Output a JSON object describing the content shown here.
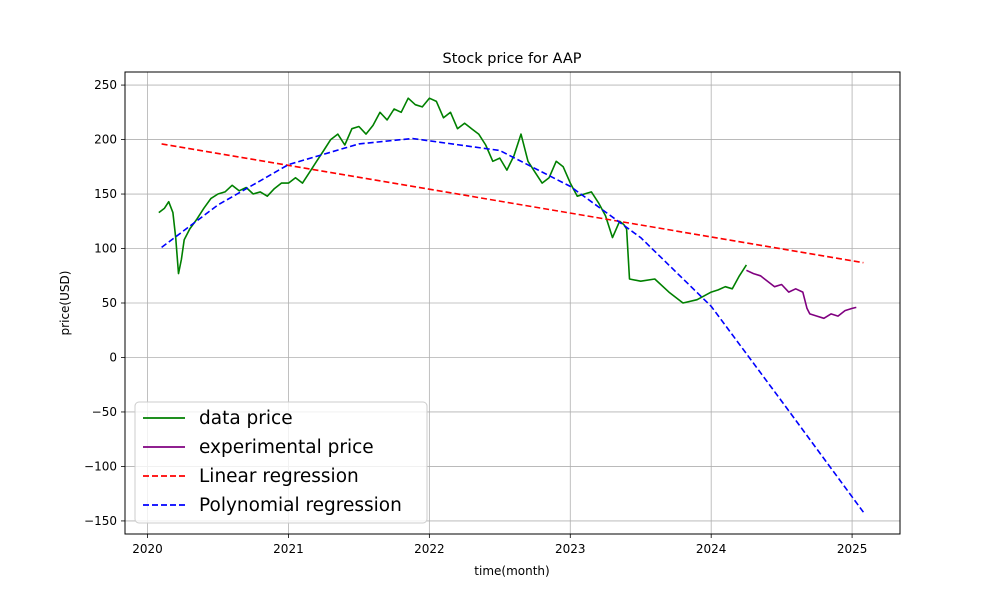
{
  "chart_data": {
    "type": "line",
    "title": "Stock price for AAP",
    "xlabel": "time(month)",
    "ylabel": "price(USD)",
    "xlim": [
      2019.84,
      2025.34
    ],
    "ylim": [
      -162,
      262
    ],
    "x_ticks": [
      2020,
      2021,
      2022,
      2023,
      2024,
      2025
    ],
    "x_tick_labels": [
      "2020",
      "2021",
      "2022",
      "2023",
      "2024",
      "2025"
    ],
    "y_ticks": [
      -150,
      -100,
      -50,
      0,
      50,
      100,
      150,
      200,
      250
    ],
    "y_tick_labels": [
      "−150",
      "−100",
      "−50",
      "0",
      "50",
      "100",
      "150",
      "200",
      "250"
    ],
    "grid": true,
    "legend_position": "lower-left",
    "series": [
      {
        "name": "data price",
        "color": "#008000",
        "style": "solid",
        "x": [
          2020.08,
          2020.12,
          2020.15,
          2020.18,
          2020.2,
          2020.22,
          2020.24,
          2020.26,
          2020.3,
          2020.35,
          2020.4,
          2020.45,
          2020.5,
          2020.55,
          2020.6,
          2020.65,
          2020.7,
          2020.75,
          2020.8,
          2020.85,
          2020.9,
          2020.95,
          2021.0,
          2021.05,
          2021.1,
          2021.15,
          2021.2,
          2021.25,
          2021.3,
          2021.35,
          2021.4,
          2021.45,
          2021.5,
          2021.55,
          2021.6,
          2021.65,
          2021.7,
          2021.75,
          2021.8,
          2021.85,
          2021.9,
          2021.95,
          2022.0,
          2022.05,
          2022.1,
          2022.15,
          2022.2,
          2022.25,
          2022.3,
          2022.35,
          2022.4,
          2022.45,
          2022.5,
          2022.55,
          2022.6,
          2022.65,
          2022.7,
          2022.75,
          2022.8,
          2022.85,
          2022.9,
          2022.95,
          2023.0,
          2023.05,
          2023.1,
          2023.15,
          2023.2,
          2023.25,
          2023.3,
          2023.35,
          2023.38,
          2023.4,
          2023.42,
          2023.5,
          2023.6,
          2023.7,
          2023.8,
          2023.9,
          2024.0,
          2024.05,
          2024.1,
          2024.15,
          2024.2,
          2024.25
        ],
        "values": [
          133,
          137,
          143,
          133,
          110,
          77,
          90,
          108,
          118,
          127,
          137,
          146,
          150,
          152,
          158,
          153,
          156,
          150,
          152,
          148,
          155,
          160,
          160,
          165,
          160,
          170,
          180,
          190,
          200,
          205,
          195,
          210,
          212,
          205,
          213,
          225,
          218,
          228,
          225,
          238,
          232,
          230,
          238,
          235,
          220,
          225,
          210,
          215,
          210,
          205,
          195,
          180,
          183,
          172,
          185,
          205,
          180,
          170,
          160,
          165,
          180,
          175,
          160,
          148,
          150,
          152,
          142,
          130,
          110,
          125,
          122,
          118,
          72,
          70,
          72,
          60,
          50,
          53,
          60,
          62,
          65,
          63,
          75,
          85
        ]
      },
      {
        "name": "experimental price",
        "color": "#800080",
        "style": "solid",
        "x": [
          2024.25,
          2024.3,
          2024.35,
          2024.4,
          2024.45,
          2024.5,
          2024.55,
          2024.6,
          2024.65,
          2024.68,
          2024.7,
          2024.75,
          2024.8,
          2024.85,
          2024.9,
          2024.95,
          2025.0,
          2025.03
        ],
        "values": [
          80,
          77,
          75,
          70,
          65,
          67,
          60,
          63,
          60,
          45,
          40,
          38,
          36,
          40,
          38,
          43,
          45,
          46
        ]
      },
      {
        "name": "Linear regression",
        "color": "#ff0000",
        "style": "dashed",
        "x": [
          2020.1,
          2025.08
        ],
        "values": [
          196,
          87
        ]
      },
      {
        "name": "Polynomial regression",
        "color": "#0000ff",
        "style": "dashed",
        "x": [
          2020.1,
          2020.5,
          2021.0,
          2021.5,
          2021.88,
          2022.5,
          2023.0,
          2023.5,
          2024.0,
          2024.5,
          2025.08
        ],
        "values": [
          101,
          140,
          177,
          196,
          201,
          190,
          157,
          110,
          47,
          -40,
          -142
        ]
      }
    ]
  }
}
